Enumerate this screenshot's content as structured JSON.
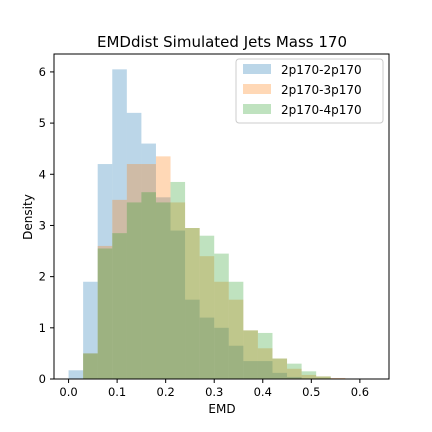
{
  "chart_data": {
    "type": "bar",
    "title": "EMDdist Simulated Jets Mass 170",
    "xlabel": "EMD",
    "ylabel": "Density",
    "xlim": [
      -0.03,
      0.66
    ],
    "ylim": [
      0,
      6.35
    ],
    "xticks": [
      0.0,
      0.1,
      0.2,
      0.3,
      0.4,
      0.5,
      0.6
    ],
    "xtick_labels": [
      "0.0",
      "0.1",
      "0.2",
      "0.3",
      "0.4",
      "0.5",
      "0.6"
    ],
    "yticks": [
      0,
      1,
      2,
      3,
      4,
      5,
      6
    ],
    "ytick_labels": [
      "0",
      "1",
      "2",
      "3",
      "4",
      "5",
      "6"
    ],
    "grid": false,
    "legend_position": "top-right",
    "series": [
      {
        "name": "2p170-2p170",
        "color": "#1f77b4",
        "alpha": 0.3,
        "bin_edges": [
          0.0,
          0.03,
          0.06,
          0.09,
          0.12,
          0.15,
          0.18,
          0.21,
          0.24,
          0.27,
          0.3,
          0.33,
          0.36,
          0.39,
          0.42,
          0.45,
          0.48
        ],
        "values": [
          0.17,
          1.9,
          4.2,
          6.05,
          5.2,
          4.6,
          3.55,
          2.9,
          1.55,
          1.2,
          1.0,
          0.65,
          0.35,
          0.35,
          0.12,
          0.04
        ]
      },
      {
        "name": "2p170-3p170",
        "color": "#ff7f0e",
        "alpha": 0.3,
        "bin_edges": [
          0.03,
          0.06,
          0.09,
          0.12,
          0.15,
          0.18,
          0.21,
          0.24,
          0.27,
          0.3,
          0.33,
          0.36,
          0.39,
          0.42,
          0.45,
          0.48,
          0.51,
          0.54,
          0.57
        ],
        "values": [
          0.5,
          2.6,
          3.5,
          4.2,
          4.2,
          4.35,
          3.45,
          2.95,
          2.4,
          1.9,
          1.55,
          0.95,
          0.6,
          0.4,
          0.2,
          0.08,
          0.05,
          0.02
        ]
      },
      {
        "name": "2p170-4p170",
        "color": "#2ca02c",
        "alpha": 0.3,
        "bin_edges": [
          0.03,
          0.06,
          0.09,
          0.12,
          0.15,
          0.18,
          0.21,
          0.24,
          0.27,
          0.3,
          0.33,
          0.36,
          0.39,
          0.42,
          0.45,
          0.48,
          0.51,
          0.54
        ],
        "values": [
          0.5,
          2.55,
          2.85,
          3.45,
          3.65,
          3.45,
          3.85,
          2.95,
          2.8,
          2.45,
          1.9,
          0.95,
          0.9,
          0.4,
          0.3,
          0.15,
          0.05
        ]
      }
    ]
  }
}
